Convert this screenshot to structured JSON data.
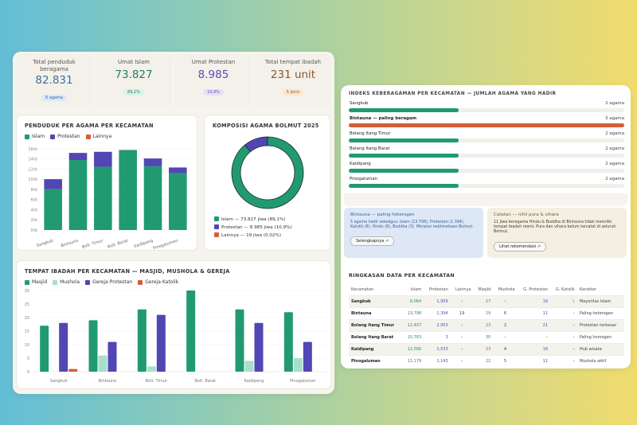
{
  "colors": {
    "islam": "#219a72",
    "protestan": "#5146b4",
    "lainnya": "#d35e3a",
    "mushola": "#a6e0cc",
    "track": "#f1efe9"
  },
  "stats": [
    {
      "label": "Total penduduk beragama",
      "value": "82.831",
      "badge": "6 agama",
      "color": "#3d6fa0",
      "badge_bg": "#dde9f7",
      "badge_color": "#3566a8"
    },
    {
      "label": "Umat Islam",
      "value": "73.827",
      "badge": "89,1%",
      "color": "#2a7a5e",
      "badge_bg": "#d9f1e7",
      "badge_color": "#2a7a5e"
    },
    {
      "label": "Umat Protestan",
      "value": "8.985",
      "badge": "10,9%",
      "color": "#5a4db6",
      "badge_bg": "#e6e2f6",
      "badge_color": "#5a4db6"
    },
    {
      "label": "Total tempat ibadah",
      "value": "231 unit",
      "badge": "5 jenis",
      "color": "#8a5a2c",
      "badge_bg": "#fbe6cf",
      "badge_color": "#9a5a20"
    }
  ],
  "chart_data": [
    {
      "type": "bar",
      "stacked": true,
      "title": "PENDUDUK PER AGAMA PER KECAMATAN",
      "categories": [
        "Sangkub",
        "Bintauna",
        "Bolt. Timur",
        "Bolt. Barat",
        "Kaidipang",
        "Pinogaluman"
      ],
      "series": [
        {
          "name": "Islam",
          "values": [
            8064,
            13798,
            12457,
            15763,
            12566,
            11179
          ]
        },
        {
          "name": "Protestan",
          "values": [
            1959,
            1394,
            2953,
            3,
            1533,
            1143
          ]
        },
        {
          "name": "Lainnya",
          "values": [
            0,
            19,
            0,
            0,
            0,
            0
          ]
        }
      ],
      "yticks": [
        "0rb",
        "2rb",
        "4rb",
        "6rb",
        "8rb",
        "10rb",
        "12rb",
        "14rb",
        "16rb"
      ],
      "ylim": [
        0,
        16000
      ],
      "legend": "top-left",
      "grid": true
    },
    {
      "type": "pie",
      "donut": true,
      "title": "KOMPOSISI AGAMA BOLMUT 2025",
      "slices": [
        {
          "name": "Islam",
          "value": 73827,
          "label": "Islam — 73.827 jiwa (89,1%)"
        },
        {
          "name": "Protestan",
          "value": 8985,
          "label": "Protestan — 8.985 jiwa (10,9%)"
        },
        {
          "name": "Lainnya",
          "value": 19,
          "label": "Lainnya — 19 jiwa (0,02%)"
        }
      ],
      "legend": "bottom"
    },
    {
      "type": "bar",
      "stacked": false,
      "title": "TEMPAT IBADAH PER KECAMATAN — MASJID, MUSHOLA & GEREJA",
      "categories": [
        "Sangkub",
        "Bintauna",
        "Bolt. Timur",
        "Bolt. Barat",
        "Kaidipang",
        "Pinogaluman"
      ],
      "series": [
        {
          "name": "Masjid",
          "values": [
            17,
            19,
            23,
            30,
            23,
            22
          ]
        },
        {
          "name": "Mushola",
          "values": [
            0,
            6,
            2,
            0,
            4,
            5
          ]
        },
        {
          "name": "Gereja Protestan",
          "values": [
            18,
            11,
            21,
            0,
            18,
            11
          ]
        },
        {
          "name": "Gereja Katolik",
          "values": [
            1,
            0,
            0,
            0,
            0,
            0
          ]
        }
      ],
      "yticks": [
        "0",
        "5",
        "10",
        "15",
        "20",
        "25",
        "30"
      ],
      "ylim": [
        0,
        30
      ],
      "legend": "top-left",
      "grid": true
    }
  ],
  "diversity": {
    "title": "INDEKS KEBERAGAMAN PER KECAMATAN — JUMLAH AGAMA YANG HADIR",
    "max": 5,
    "rows": [
      {
        "name": "Sangkub",
        "count": 2,
        "label": "2 agama",
        "highlight": false
      },
      {
        "name": "Bintauna — paling beragam",
        "count": 5,
        "label": "5 agama",
        "highlight": true
      },
      {
        "name": "Bolang Itang Timur",
        "count": 2,
        "label": "2 agama",
        "highlight": false
      },
      {
        "name": "Bolang Itang Barat",
        "count": 2,
        "label": "2 agama",
        "highlight": false
      },
      {
        "name": "Kaidipang",
        "count": 2,
        "label": "2 agama",
        "highlight": false
      },
      {
        "name": "Pinogaluman",
        "count": 2,
        "label": "2 agama",
        "highlight": false
      }
    ]
  },
  "notes": [
    {
      "title": "Bintauna — paling heterogen",
      "body": "5 agama hadir sekaligus: Islam (13.798), Protestan (1.394), Katolik (8), Hindu (8), Buddha (3). Miniatur kebhinekaan Bolmut.",
      "button": "Selengkapnya ↗"
    },
    {
      "title": "Catatan — nihil pura & vihara",
      "body": "11 jiwa beragama Hindu & Buddha di Bintauna tidak memiliki tempat ibadah resmi. Pura dan vihara belum tercatat di seluruh Bolmut.",
      "button": "Lihat rekomendasi ↗"
    }
  ],
  "summary": {
    "title": "RINGKASAN DATA PER KECAMATAN",
    "columns": [
      "Kecamatan",
      "Islam",
      "Protestan",
      "Lainnya",
      "Masjid",
      "Mushola",
      "G. Protestan",
      "G. Katolik",
      "Karakter"
    ],
    "rows": [
      [
        "Sangkub",
        "8,064",
        "1,959",
        "–",
        "17",
        "–",
        "18",
        "1",
        "Mayoritas Islam"
      ],
      [
        "Bintauna",
        "13,798",
        "1,394",
        "19",
        "19",
        "6",
        "11",
        "–",
        "Paling heterogen"
      ],
      [
        "Bolang Itang Timur",
        "12,457",
        "2,953",
        "–",
        "23",
        "2",
        "21",
        "–",
        "Protestan terbesar"
      ],
      [
        "Bolang Itang Barat",
        "15,763",
        "3",
        "–",
        "30",
        "–",
        "–",
        "–",
        "Paling homogen"
      ],
      [
        "Kaidipang",
        "12,566",
        "1,533",
        "–",
        "23",
        "4",
        "18",
        "–",
        "Hub wisata"
      ],
      [
        "Pinogaluman",
        "11,179",
        "1,143",
        "–",
        "22",
        "5",
        "11",
        "–",
        "Mushola aktif"
      ]
    ]
  }
}
